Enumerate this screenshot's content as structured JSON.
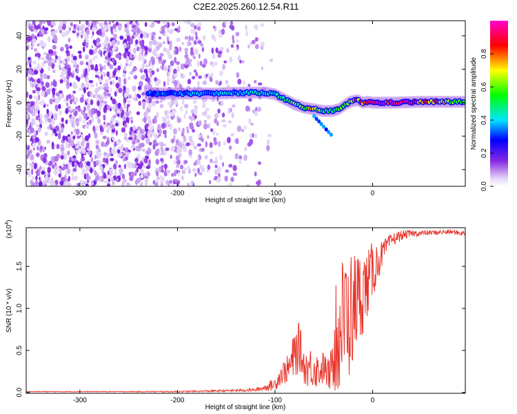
{
  "title": "C2E2.2025.260.12.54.R11",
  "colors": {
    "snr_line": "#e8362c",
    "axis": "#000000",
    "grid_tick": "#000000"
  },
  "chart_data": [
    {
      "type": "heatmap",
      "xlabel": "Height of straight line (km)",
      "ylabel": "Frequency (Hz)",
      "xlim": [
        -355,
        95
      ],
      "ylim": [
        -50,
        49
      ],
      "xticks": [
        -300,
        -200,
        -100,
        0
      ],
      "xtick_labels": [
        "-300",
        "-200",
        "-100",
        "0"
      ],
      "yticks": [
        -40,
        -20,
        0,
        20,
        40
      ],
      "ytick_labels": [
        "-40",
        "-20",
        "0",
        "20",
        "40"
      ],
      "colorbar": {
        "label": "Normalized spectral amplitude",
        "range": [
          0,
          1
        ],
        "ticks": [
          0.0,
          0.2,
          0.4,
          0.6,
          0.8
        ],
        "tick_labels": [
          "0.0",
          "0.2",
          "0.4",
          "0.6",
          "0.8"
        ],
        "colormap": "rainbow (white-violet-blue-cyan-green-yellow-red-magenta)"
      },
      "ridge": {
        "description": "dominant frequency track",
        "x": [
          -230,
          -200,
          -160,
          -130,
          -110,
          -100,
          -90,
          -80,
          -70,
          -60,
          -50,
          -42,
          -35,
          -30,
          -25,
          -20,
          -15,
          -10,
          -5,
          0,
          20,
          50,
          95
        ],
        "y": [
          5.5,
          5.5,
          5.5,
          6,
          6,
          5,
          2,
          -1,
          -3,
          -4,
          -5,
          -5,
          -4,
          -2,
          0,
          1,
          1.5,
          0,
          0.5,
          0,
          0,
          0.5,
          0.5
        ],
        "amplitude": [
          0.35,
          0.35,
          0.4,
          0.45,
          0.5,
          0.45,
          0.55,
          0.6,
          0.6,
          0.75,
          0.6,
          0.55,
          0.6,
          0.7,
          0.75,
          0.8,
          0.8,
          0.85,
          0.9,
          0.95,
          1.0,
          0.9,
          0.55
        ]
      },
      "noise_extent": {
        "dense_until": -230,
        "sparse_until": -110
      }
    },
    {
      "type": "line",
      "xlabel": "Height of straight line (km)",
      "ylabel": "SNR (10 * v/v)",
      "yscale_note": "(x10",
      "yscale_exp": "4",
      "yscale_close": ")",
      "xlim": [
        -355,
        95
      ],
      "ylim": [
        -0.01,
        1.96
      ],
      "xticks": [
        -300,
        -200,
        -100,
        0
      ],
      "xtick_labels": [
        "-300",
        "-200",
        "-100",
        "0"
      ],
      "yticks": [
        0.0,
        0.5,
        1.0,
        1.5
      ],
      "ytick_labels": [
        "0.0",
        "0.5",
        "1.0",
        "1.5"
      ],
      "series": [
        {
          "x": [
            -355,
            -300,
            -250,
            -200,
            -150,
            -120,
            -110,
            -100,
            -95,
            -90,
            -85,
            -80,
            -75,
            -70,
            -65,
            -60,
            -55,
            -50,
            -45,
            -40,
            -35,
            -30,
            -25,
            -20,
            -15,
            -10,
            -5,
            0,
            5,
            10,
            15,
            20,
            30,
            40,
            60,
            80,
            95
          ],
          "y": [
            0.01,
            0.01,
            0.01,
            0.01,
            0.02,
            0.03,
            0.06,
            0.1,
            0.2,
            0.25,
            0.3,
            0.45,
            0.55,
            0.3,
            0.3,
            0.3,
            0.25,
            0.3,
            0.2,
            0.35,
            0.6,
            0.9,
            0.9,
            1.0,
            1.1,
            1.2,
            1.3,
            1.45,
            1.55,
            1.65,
            1.75,
            1.82,
            1.87,
            1.89,
            1.9,
            1.91,
            1.89
          ],
          "envelope": [
            0.005,
            0.005,
            0.005,
            0.008,
            0.012,
            0.02,
            0.04,
            0.08,
            0.12,
            0.15,
            0.18,
            0.3,
            0.3,
            0.2,
            0.25,
            0.25,
            0.2,
            0.2,
            0.2,
            0.3,
            0.7,
            0.8,
            0.8,
            0.7,
            0.6,
            0.5,
            0.4,
            0.35,
            0.25,
            0.15,
            0.1,
            0.08,
            0.06,
            0.04,
            0.03,
            0.03,
            0.03
          ]
        }
      ]
    }
  ]
}
